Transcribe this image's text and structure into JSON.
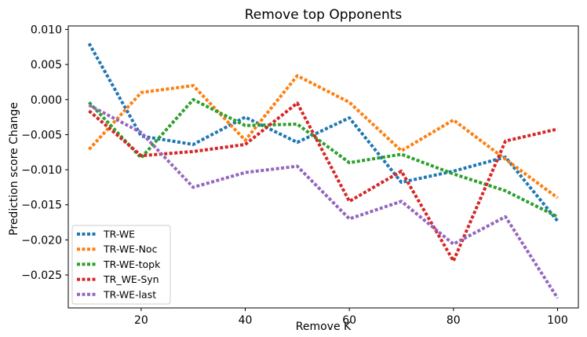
{
  "chart_data": {
    "type": "line",
    "title": "Remove top Opponents",
    "xlabel": "Remove K",
    "ylabel": "Prediction score Change",
    "xlim": [
      6,
      104
    ],
    "ylim": [
      -0.0297,
      0.0105
    ],
    "x_ticks": [
      20,
      40,
      60,
      80,
      100
    ],
    "y_ticks": [
      0.01,
      0.005,
      0.0,
      -0.005,
      -0.01,
      -0.015,
      -0.02,
      -0.025
    ],
    "x_tick_labels": [
      "20",
      "40",
      "60",
      "80",
      "100"
    ],
    "y_tick_labels": [
      "0.010",
      "0.005",
      "0.000",
      "−0.005",
      "−0.010",
      "−0.015",
      "−0.020",
      "−0.025"
    ],
    "grid": false,
    "legend_position": "lower-left",
    "line_style": "dotted",
    "x": [
      10,
      20,
      30,
      40,
      50,
      60,
      70,
      80,
      90,
      100
    ],
    "series": [
      {
        "name": "TR-WE",
        "color": "#1f77b4",
        "values": [
          0.008,
          -0.0052,
          -0.0064,
          -0.0025,
          -0.0061,
          -0.0026,
          -0.0118,
          -0.0102,
          -0.0082,
          -0.0173
        ]
      },
      {
        "name": "TR-WE-Noc",
        "color": "#ff7f0e",
        "values": [
          -0.0071,
          0.001,
          0.002,
          -0.0058,
          0.0034,
          -0.0004,
          -0.0073,
          -0.0029,
          -0.0085,
          -0.014
        ]
      },
      {
        "name": "TR-WE-topk",
        "color": "#2ca02c",
        "values": [
          -0.0004,
          -0.0083,
          0.0,
          -0.0037,
          -0.0035,
          -0.009,
          -0.0078,
          -0.0106,
          -0.013,
          -0.0167
        ]
      },
      {
        "name": "TR_WE-Syn",
        "color": "#d62728",
        "values": [
          -0.0016,
          -0.008,
          -0.0074,
          -0.0064,
          -0.0005,
          -0.0145,
          -0.0102,
          -0.023,
          -0.0059,
          -0.0042
        ]
      },
      {
        "name": "TR-WE-last",
        "color": "#9467bd",
        "values": [
          -0.0008,
          -0.0047,
          -0.0125,
          -0.0104,
          -0.0095,
          -0.017,
          -0.0145,
          -0.0206,
          -0.0167,
          -0.0283
        ]
      }
    ]
  }
}
